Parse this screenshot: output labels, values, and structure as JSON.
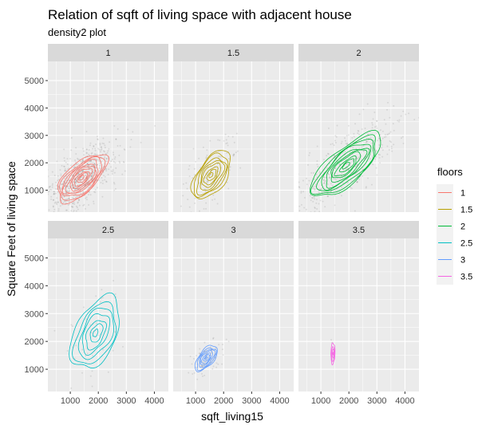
{
  "chart_data": {
    "type": "density2d-faceted",
    "title": "Relation of sqft of living space with adjacent house",
    "subtitle": "density2 plot",
    "xlabel": "sqft_living15",
    "ylabel": "Square Feet of living space",
    "xlim": [
      200,
      4500
    ],
    "ylim": [
      200,
      5700
    ],
    "x_ticks": [
      1000,
      2000,
      3000,
      4000
    ],
    "y_ticks": [
      1000,
      2000,
      3000,
      4000,
      5000
    ],
    "grid": true,
    "legend_title": "floors",
    "legend_position": "right",
    "facets": [
      {
        "label": "1",
        "color": "#F8766D",
        "center": [
          1400,
          1450
        ],
        "sx": 420,
        "sy": 420,
        "rho": 0.65,
        "rings": 10
      },
      {
        "label": "1.5",
        "color": "#B79F00",
        "center": [
          1550,
          1550
        ],
        "sx": 330,
        "sy": 420,
        "rho": 0.55,
        "rings": 8
      },
      {
        "label": "2",
        "color": "#00BA38",
        "center": [
          1900,
          1900
        ],
        "sx": 600,
        "sy": 560,
        "rho": 0.75,
        "rings": 10
      },
      {
        "label": "2.5",
        "color": "#00BFC4",
        "center": [
          1900,
          2300
        ],
        "sx": 420,
        "sy": 620,
        "rho": 0.45,
        "rings": 7
      },
      {
        "label": "3",
        "color": "#619CFF",
        "center": [
          1380,
          1400
        ],
        "sx": 190,
        "sy": 220,
        "rho": 0.6,
        "rings": 7
      },
      {
        "label": "3.5",
        "color": "#F564E3",
        "center": [
          1430,
          1570
        ],
        "sx": 35,
        "sy": 180,
        "rho": 0.1,
        "rings": 4
      }
    ],
    "series": [
      {
        "name": "1",
        "color": "#F8766D"
      },
      {
        "name": "1.5",
        "color": "#B79F00"
      },
      {
        "name": "2",
        "color": "#00BA38"
      },
      {
        "name": "2.5",
        "color": "#00BFC4"
      },
      {
        "name": "3",
        "color": "#619CFF"
      },
      {
        "name": "3.5",
        "color": "#F564E3"
      }
    ]
  }
}
